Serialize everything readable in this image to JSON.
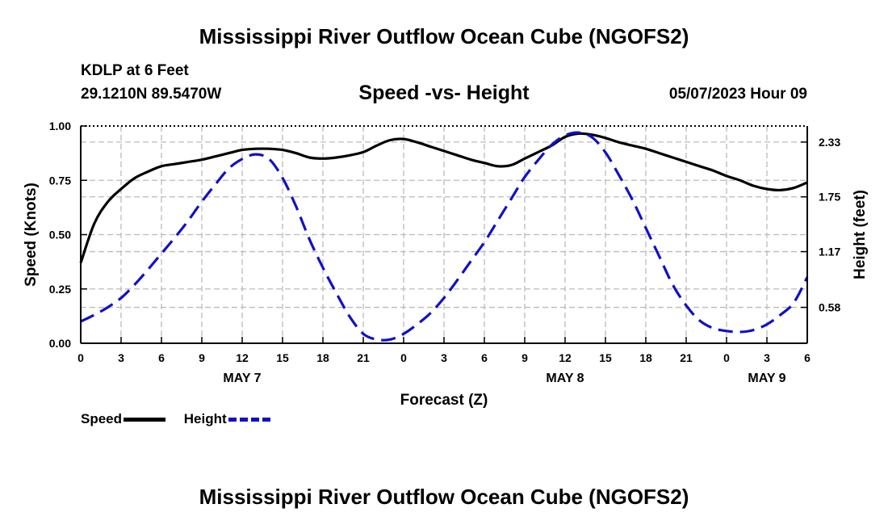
{
  "header": {
    "title": "Mississippi River Outflow Ocean Cube (NGOFS2)",
    "station": "KDLP at 6 Feet",
    "coords": "29.1210N  89.5470W",
    "subtitle": "Speed -vs- Height",
    "datetime": "05/07/2023 Hour 09"
  },
  "footer": {
    "title": "Mississippi River Outflow Ocean Cube (NGOFS2)"
  },
  "legend": {
    "speed_label": "Speed",
    "height_label": "Height"
  },
  "chart_data": {
    "type": "line",
    "title": "Speed -vs- Height",
    "xlabel": "Forecast (Z)",
    "ylabel": "Speed (Knots)",
    "y2label": "Height (feet)",
    "xlim": [
      0,
      54
    ],
    "ylim": [
      0,
      1.0
    ],
    "y2lim": [
      0.2,
      2.5
    ],
    "x_ticks": [
      0,
      3,
      6,
      9,
      12,
      15,
      18,
      21,
      24,
      27,
      30,
      33,
      36,
      39,
      42,
      45,
      48,
      51,
      54
    ],
    "x_tick_labels": [
      "0",
      "3",
      "6",
      "9",
      "12",
      "15",
      "18",
      "21",
      "0",
      "3",
      "6",
      "9",
      "12",
      "15",
      "18",
      "21",
      "0",
      "3",
      "6"
    ],
    "date_labels": [
      {
        "x": 12,
        "label": "MAY 7"
      },
      {
        "x": 36,
        "label": "MAY 8"
      },
      {
        "x": 51,
        "label": "MAY 9"
      }
    ],
    "y_ticks": [
      0,
      0.25,
      0.5,
      0.75,
      1.0
    ],
    "y_tick_labels": [
      "0.00",
      "0.25",
      "0.50",
      "0.75",
      "1.00"
    ],
    "y2_ticks": [
      0.58,
      1.17,
      1.75,
      2.33
    ],
    "y2_tick_labels": [
      "0.58",
      "1.17",
      "1.75",
      "2.33"
    ],
    "grid": true,
    "legend_position": "bottom-left",
    "colors": {
      "speed": "#000000",
      "height": "#1010c8",
      "grid": "#bbbbbb"
    },
    "series": [
      {
        "name": "Speed",
        "axis": "left",
        "x": [
          0,
          1,
          2,
          3,
          4,
          5,
          6,
          7,
          8,
          9,
          10,
          11,
          12,
          13,
          14,
          15,
          16,
          17,
          18,
          19,
          20,
          21,
          22,
          23,
          24,
          25,
          26,
          27,
          28,
          29,
          30,
          31,
          32,
          33,
          34,
          35,
          36,
          37,
          38,
          39,
          40,
          41,
          42,
          43,
          44,
          45,
          46,
          47,
          48,
          49,
          50,
          51,
          52,
          53,
          54
        ],
        "values": [
          0.37,
          0.55,
          0.65,
          0.71,
          0.76,
          0.79,
          0.815,
          0.825,
          0.835,
          0.845,
          0.86,
          0.875,
          0.89,
          0.895,
          0.895,
          0.89,
          0.875,
          0.855,
          0.85,
          0.855,
          0.865,
          0.88,
          0.91,
          0.935,
          0.94,
          0.925,
          0.905,
          0.885,
          0.865,
          0.845,
          0.83,
          0.815,
          0.82,
          0.85,
          0.88,
          0.91,
          0.95,
          0.965,
          0.96,
          0.945,
          0.925,
          0.91,
          0.895,
          0.875,
          0.855,
          0.835,
          0.815,
          0.795,
          0.77,
          0.75,
          0.725,
          0.71,
          0.705,
          0.715,
          0.74
        ]
      },
      {
        "name": "Height",
        "axis": "right",
        "x": [
          0,
          1,
          2,
          3,
          4,
          5,
          6,
          7,
          8,
          9,
          10,
          11,
          12,
          13,
          14,
          15,
          16,
          17,
          18,
          19,
          20,
          21,
          22,
          23,
          24,
          25,
          26,
          27,
          28,
          29,
          30,
          31,
          32,
          33,
          34,
          35,
          36,
          37,
          38,
          39,
          40,
          41,
          42,
          43,
          44,
          45,
          46,
          47,
          48,
          49,
          50,
          51,
          52,
          53,
          54
        ],
        "values": [
          0.43,
          0.5,
          0.58,
          0.68,
          0.82,
          0.98,
          1.15,
          1.32,
          1.5,
          1.7,
          1.88,
          2.05,
          2.15,
          2.2,
          2.15,
          1.95,
          1.65,
          1.3,
          1.0,
          0.73,
          0.48,
          0.3,
          0.24,
          0.24,
          0.3,
          0.4,
          0.52,
          0.68,
          0.87,
          1.07,
          1.27,
          1.5,
          1.73,
          1.96,
          2.14,
          2.3,
          2.4,
          2.43,
          2.38,
          2.22,
          1.98,
          1.72,
          1.42,
          1.12,
          0.82,
          0.6,
          0.44,
          0.36,
          0.33,
          0.32,
          0.34,
          0.4,
          0.5,
          0.63,
          0.9
        ]
      }
    ]
  }
}
